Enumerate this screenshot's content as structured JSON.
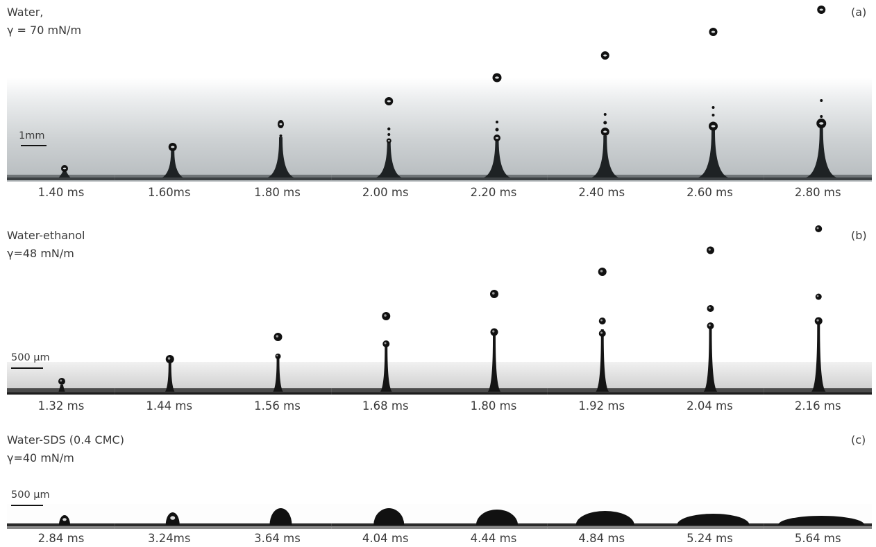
{
  "rows": [
    {
      "id": "a",
      "liquid": "Water,",
      "surface_tension": "γ = 70 mN/m",
      "panel_tag": "(a)",
      "scale_label": "1mm",
      "times": [
        "1.40 ms",
        "1.60ms",
        "1.80 ms",
        "2.00 ms",
        "2.20 ms",
        "2.40 ms",
        "2.60 ms",
        "2.80 ms"
      ]
    },
    {
      "id": "b",
      "liquid": "Water-ethanol",
      "surface_tension": "γ=48 mN/m",
      "panel_tag": "(b)",
      "scale_label": "500 µm",
      "times": [
        "1.32 ms",
        "1.44 ms",
        "1.56 ms",
        "1.68 ms",
        "1.80 ms",
        "1.92 ms",
        "2.04 ms",
        "2.16 ms"
      ]
    },
    {
      "id": "c",
      "liquid": "Water-SDS (0.4 CMC)",
      "surface_tension": "γ=40 mN/m",
      "panel_tag": "(c)",
      "scale_label": "500 µm",
      "times": [
        "2.84 ms",
        "3.24ms",
        "3.64 ms",
        "4.04 ms",
        "4.44 ms",
        "4.84 ms",
        "5.24 ms",
        "5.64 ms"
      ]
    }
  ],
  "colors": {
    "ink": "#111111",
    "text": "#3a3a3a",
    "background": "#ffffff"
  }
}
